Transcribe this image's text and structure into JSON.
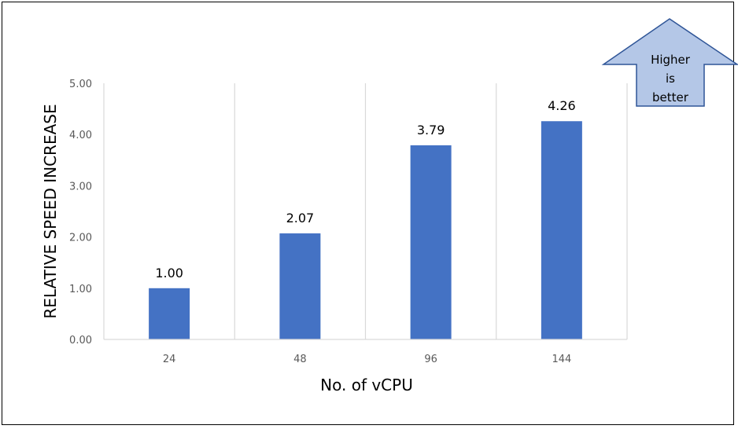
{
  "chart_data": {
    "type": "bar",
    "categories": [
      "24",
      "48",
      "96",
      "144"
    ],
    "values": [
      1.0,
      2.07,
      3.79,
      4.26
    ],
    "data_labels": [
      "1.00",
      "2.07",
      "3.79",
      "4.26"
    ],
    "title": "",
    "xlabel": "No. of vCPU",
    "ylabel": "RELATIVE SPEED INCREASE",
    "ylim": [
      0,
      5
    ],
    "yticks": [
      "0.00",
      "1.00",
      "2.00",
      "3.00",
      "4.00",
      "5.00"
    ],
    "grid": "vertical",
    "bar_color": "#4472C4"
  },
  "annotation": {
    "lines": [
      "Higher",
      "is",
      "better"
    ],
    "fill": "#B4C7E7",
    "stroke": "#2F5597"
  }
}
